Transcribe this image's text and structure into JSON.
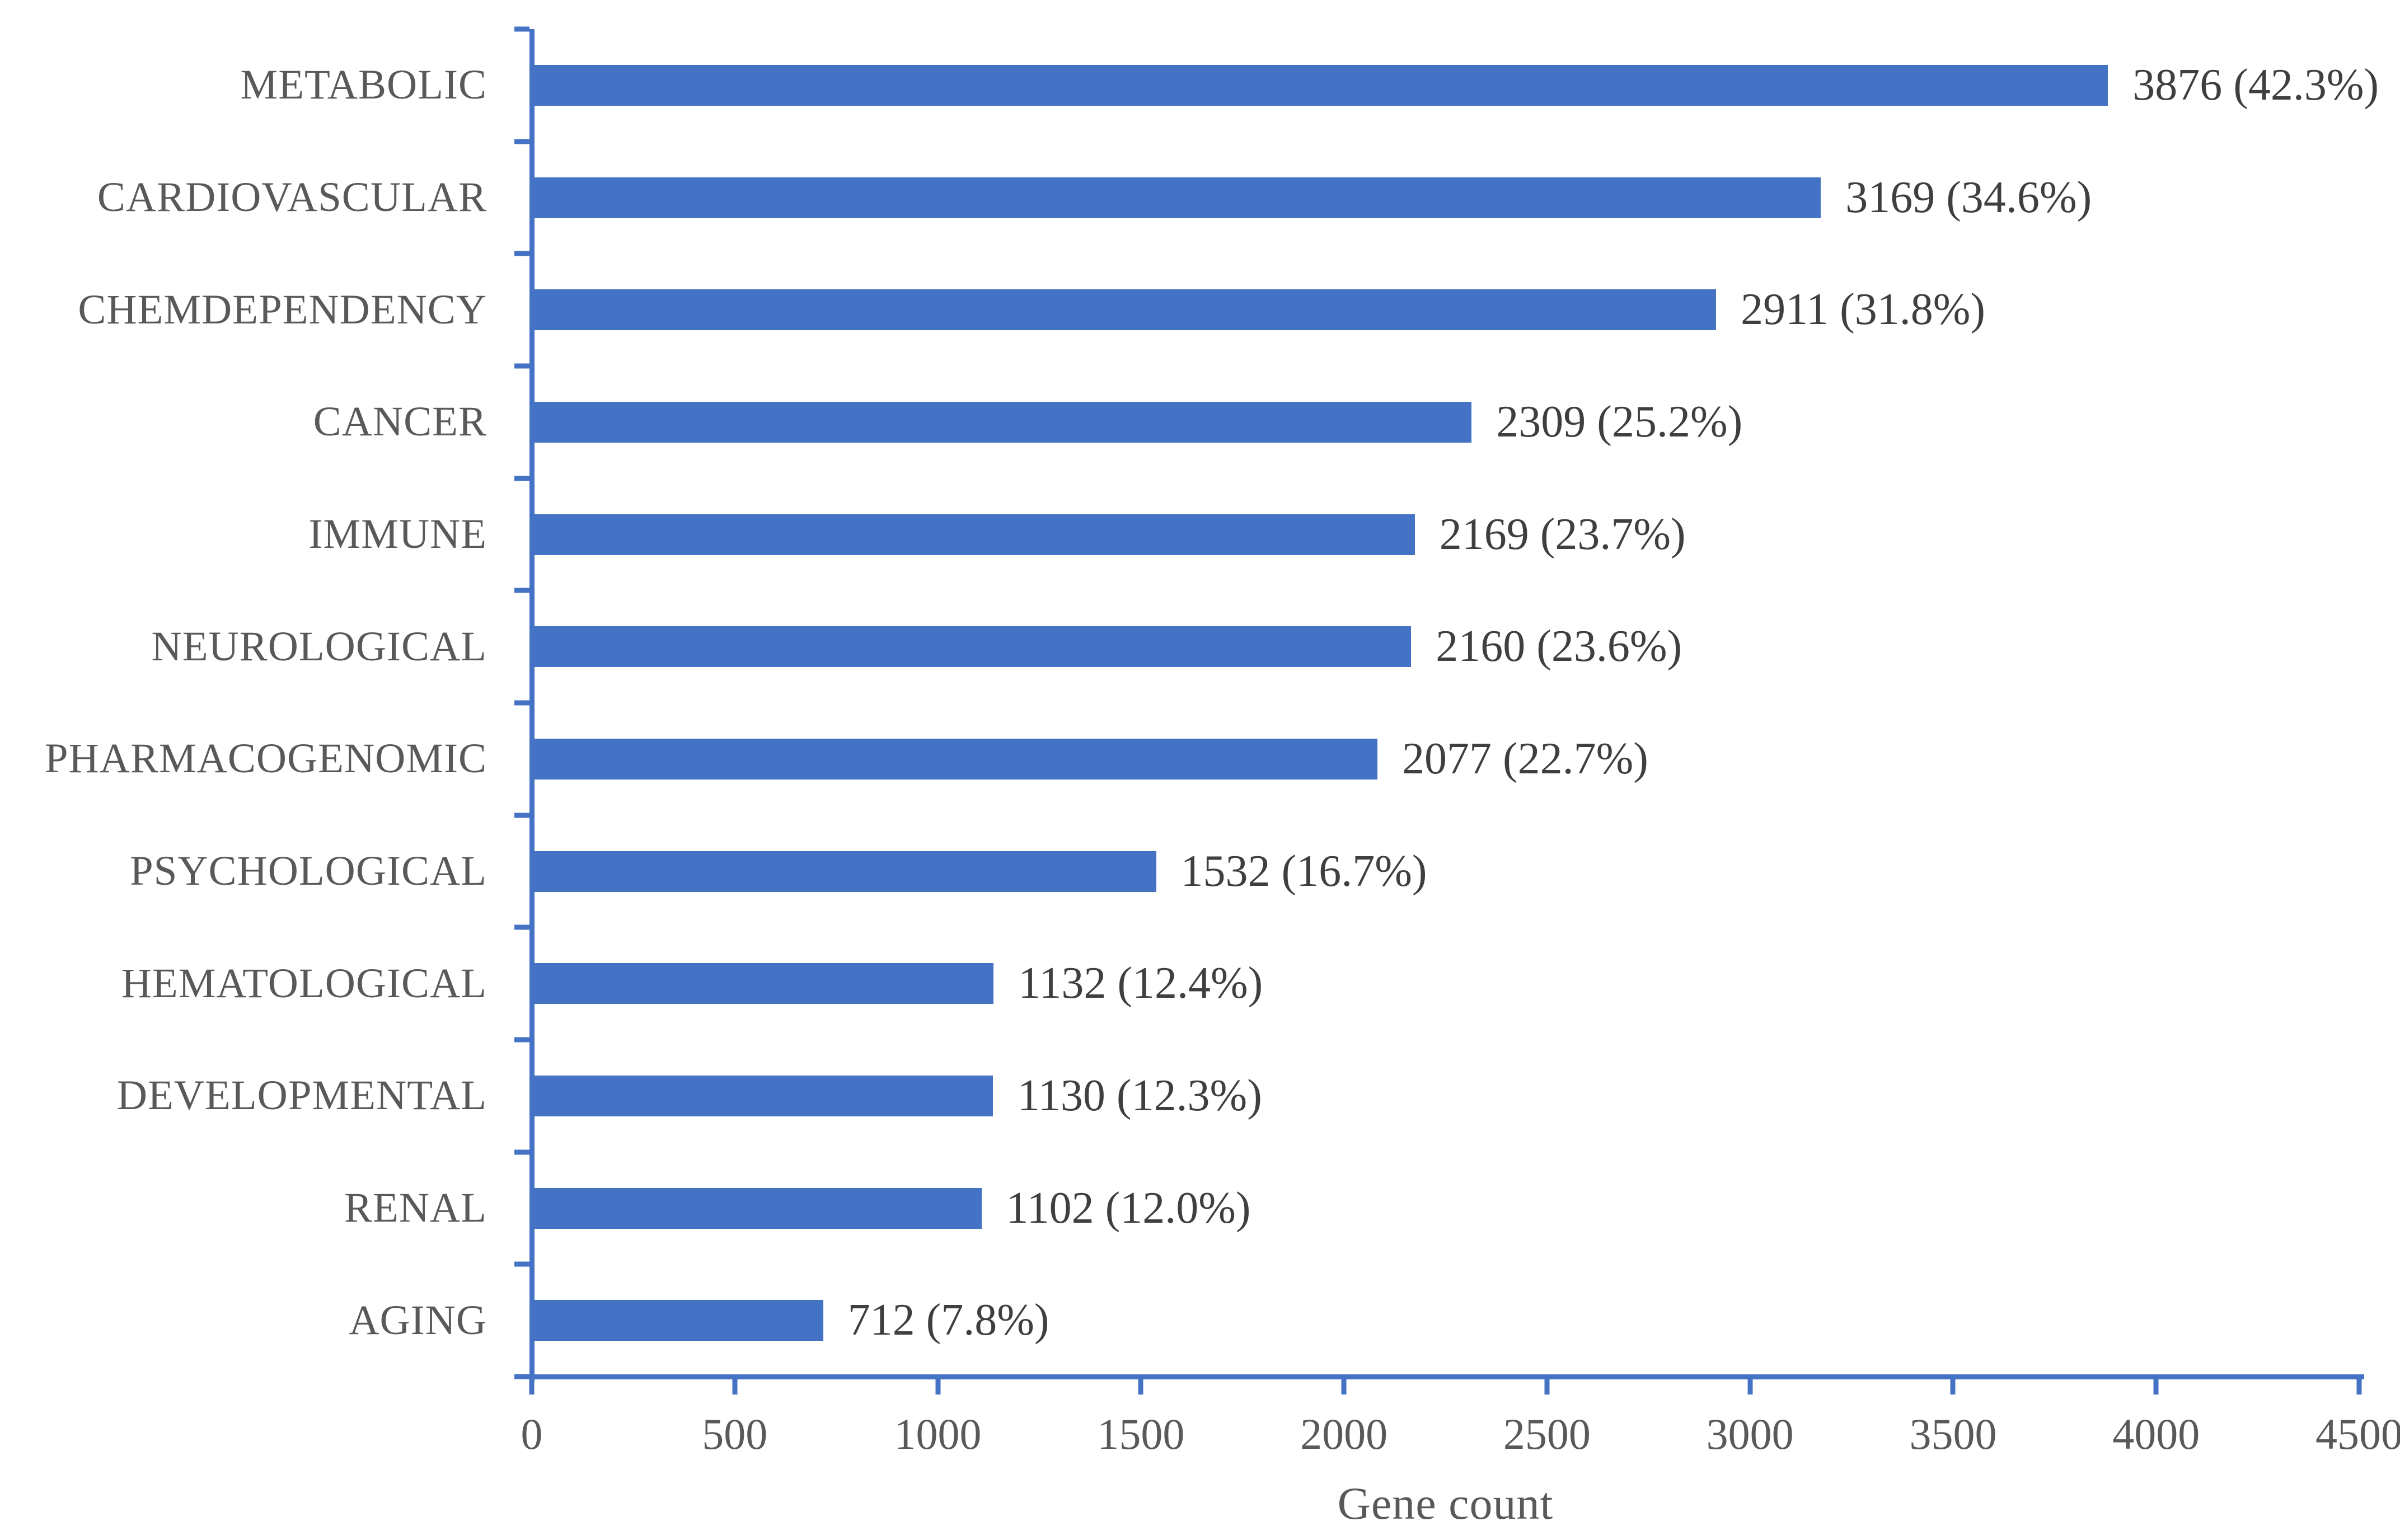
{
  "chart_data": {
    "type": "bar",
    "orientation": "horizontal",
    "title": "",
    "xlabel": "Gene count",
    "ylabel": "",
    "categories": [
      "METABOLIC",
      "CARDIOVASCULAR",
      "CHEMDEPENDENCY",
      "CANCER",
      "IMMUNE",
      "NEUROLOGICAL",
      "PHARMACOGENOMIC",
      "PSYCHOLOGICAL",
      "HEMATOLOGICAL",
      "DEVELOPMENTAL",
      "RENAL",
      "AGING"
    ],
    "values": [
      3876,
      3169,
      2911,
      2309,
      2169,
      2160,
      2077,
      1532,
      1132,
      1130,
      1102,
      712
    ],
    "percentages": [
      42.3,
      34.6,
      31.8,
      25.2,
      23.7,
      23.6,
      22.7,
      16.7,
      12.4,
      12.3,
      12.0,
      7.8
    ],
    "value_labels": [
      "3876 (42.3%)",
      "3169 (34.6%)",
      "2911 (31.8%)",
      "2309 (25.2%)",
      "2169 (23.7%)",
      "2160 (23.6%)",
      "2077 (22.7%)",
      "1532 (16.7%)",
      "1132 (12.4%)",
      "1130 (12.3%)",
      "1102 (12.0%)",
      "712 (7.8%)"
    ],
    "x_ticks": [
      0,
      500,
      1000,
      1500,
      2000,
      2500,
      3000,
      3500,
      4000,
      4500
    ],
    "x_tick_labels": [
      "0",
      "500",
      "1000",
      "1500",
      "2000",
      "2500",
      "3000",
      "3500",
      "4000",
      "4500"
    ],
    "xlim": [
      0,
      4500
    ],
    "grid": false,
    "legend": false,
    "colors": {
      "bar": "#4472C4",
      "axis": "#4472C4",
      "category_label": "#595959",
      "value_label": "#3F3F3F",
      "tick_label": "#595959"
    }
  }
}
